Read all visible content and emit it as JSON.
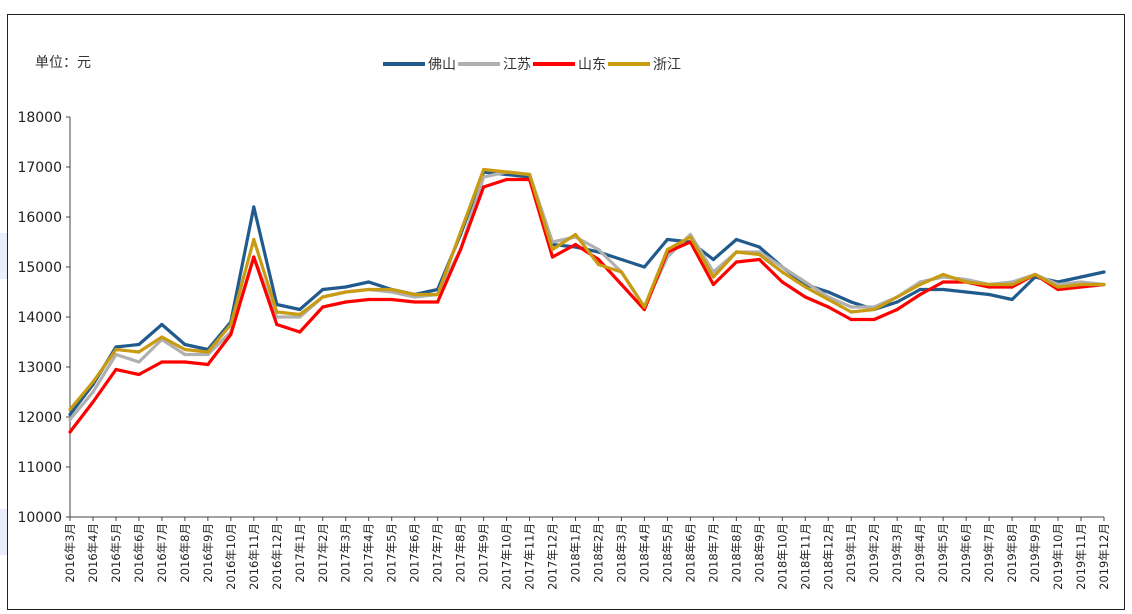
{
  "unit_label": "单位：元",
  "colors": {
    "佛山": "#215a8c",
    "江苏": "#b0b0b0",
    "山东": "#ff0000",
    "浙江": "#c89b12"
  },
  "chart_data": {
    "type": "line",
    "title": "",
    "xlabel": "",
    "ylabel": "单位：元",
    "ylim": [
      10000,
      18000
    ],
    "yticks": [
      "10000",
      "11000",
      "12000",
      "13000",
      "14000",
      "15000",
      "16000",
      "17000",
      "18000"
    ],
    "x": [
      "2016年3月",
      "2016年4月",
      "2016年5月",
      "2016年6月",
      "2016年7月",
      "2016年8月",
      "2016年9月",
      "2016年10月",
      "2016年11月",
      "2016年12月",
      "2017年1月",
      "2017年2月",
      "2017年3月",
      "2017年4月",
      "2017年5月",
      "2017年6月",
      "2017年7月",
      "2017年8月",
      "2017年9月",
      "2017年10月",
      "2017年11月",
      "2017年12月",
      "2018年1月",
      "2018年2月",
      "2018年3月",
      "2018年4月",
      "2018年5月",
      "2018年6月",
      "2018年7月",
      "2018年8月",
      "2018年9月",
      "2018年10月",
      "2018年11月",
      "2018年12月",
      "2019年1月",
      "2019年2月",
      "2019年3月",
      "2019年4月",
      "2019年5月",
      "2019年6月",
      "2019年7月",
      "2019年8月",
      "2019年9月",
      "2019年10月",
      "2019年11月",
      "2019年12月"
    ],
    "legend_position": "top",
    "grid": false,
    "series": [
      {
        "name": "佛山",
        "values": [
          12050,
          12650,
          13400,
          13450,
          13850,
          13450,
          13350,
          13900,
          16200,
          14250,
          14150,
          14550,
          14600,
          14700,
          14550,
          14450,
          14550,
          15650,
          16900,
          16850,
          16800,
          15450,
          15400,
          15300,
          15150,
          15000,
          15550,
          15500,
          15150,
          15550,
          15400,
          15000,
          14650,
          14500,
          14300,
          14150,
          14300,
          14550,
          14550,
          14500,
          14450,
          14350,
          14800,
          14700,
          14800,
          14900
        ]
      },
      {
        "name": "江苏",
        "values": [
          11950,
          12500,
          13250,
          13100,
          13550,
          13250,
          13250,
          13700,
          15200,
          14000,
          14000,
          14400,
          14500,
          14550,
          14500,
          14400,
          14450,
          15350,
          16800,
          16900,
          16850,
          15500,
          15600,
          15350,
          14900,
          14200,
          15200,
          15650,
          14900,
          15300,
          15300,
          15000,
          14700,
          14400,
          14200,
          14200,
          14400,
          14700,
          14800,
          14750,
          14650,
          14700,
          14850,
          14650,
          14700,
          14650
        ]
      },
      {
        "name": "山东",
        "values": [
          11700,
          12300,
          12950,
          12850,
          13100,
          13100,
          13050,
          13650,
          15200,
          13850,
          13700,
          14200,
          14300,
          14350,
          14350,
          14300,
          14300,
          15350,
          16600,
          16750,
          16750,
          15200,
          15450,
          15150,
          14650,
          14150,
          15300,
          15500,
          14650,
          15100,
          15150,
          14700,
          14400,
          14200,
          13950,
          13950,
          14150,
          14450,
          14700,
          14700,
          14600,
          14600,
          14850,
          14550,
          14600,
          14650
        ]
      },
      {
        "name": "浙江",
        "values": [
          12150,
          12700,
          13350,
          13300,
          13600,
          13350,
          13300,
          13850,
          15550,
          14100,
          14050,
          14400,
          14500,
          14550,
          14550,
          14450,
          14450,
          15700,
          16950,
          16900,
          16850,
          15350,
          15650,
          15050,
          14900,
          14200,
          15350,
          15600,
          14800,
          15300,
          15250,
          14900,
          14600,
          14350,
          14100,
          14150,
          14400,
          14650,
          14850,
          14700,
          14650,
          14650,
          14850,
          14600,
          14650,
          14650
        ]
      }
    ]
  }
}
